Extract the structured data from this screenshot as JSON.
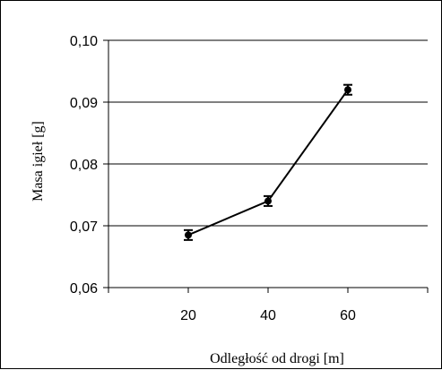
{
  "chart_data": {
    "type": "line",
    "title": "",
    "xlabel": "Odległość od drogi [m]",
    "ylabel": "Masa igieł [g]",
    "x": [
      20,
      40,
      60
    ],
    "x_ticks": [
      "20",
      "40",
      "60"
    ],
    "xlim": [
      0,
      80
    ],
    "ylim": [
      0.06,
      0.1
    ],
    "y_ticks": [
      "0,10",
      "0,09",
      "0,08",
      "0,07",
      "0,06"
    ],
    "y_tick_values": [
      0.1,
      0.09,
      0.08,
      0.07,
      0.06
    ],
    "grid": true,
    "legend": "none",
    "series": [
      {
        "values": [
          0.0685,
          0.074,
          0.092
        ],
        "error": [
          0.0008,
          0.0008,
          0.0008
        ],
        "color": "#000000",
        "marker": "circle"
      }
    ]
  }
}
